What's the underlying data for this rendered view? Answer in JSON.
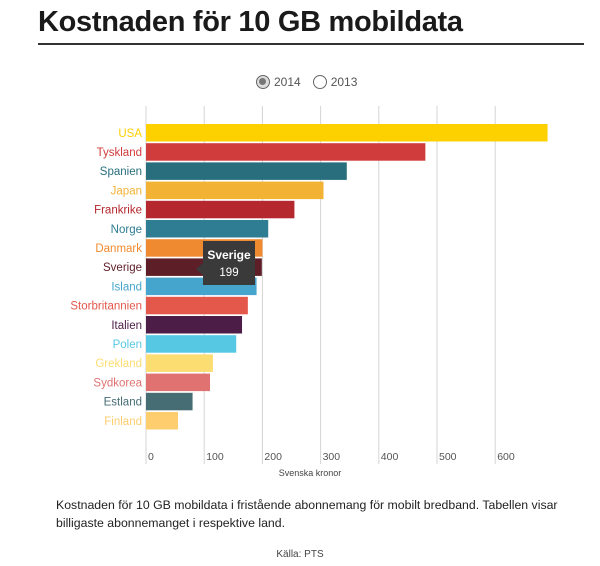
{
  "header": {
    "title": "Kostnaden för 10 GB mobildata"
  },
  "legend": {
    "options": [
      "2014",
      "2013"
    ],
    "selected": "2014"
  },
  "tooltip": {
    "label": "Sverige",
    "value": "199"
  },
  "caption": "Kostnaden för 10 GB mobildata i fristående abonnemang för mobilt bredband. Tabellen visar billigaste abonnemanget i respektive land.",
  "source": "Källa: PTS",
  "chart_data": {
    "type": "bar",
    "orientation": "horizontal",
    "title": "Kostnaden för 10 GB mobildata",
    "xlabel": "Svenska kronor",
    "ylabel": "",
    "xlim": [
      0,
      700
    ],
    "xticks": [
      0,
      100,
      200,
      300,
      400,
      500,
      600
    ],
    "grid": true,
    "series": [
      {
        "name": "2014",
        "values": [
          690,
          480,
          345,
          305,
          255,
          210,
          200,
          199,
          190,
          175,
          165,
          155,
          115,
          110,
          80,
          55
        ]
      }
    ],
    "categories": [
      "USA",
      "Tyskland",
      "Spanien",
      "Japan",
      "Frankrike",
      "Norge",
      "Danmark",
      "Sverige",
      "Island",
      "Storbritannien",
      "Italien",
      "Polen",
      "Grekland",
      "Sydkorea",
      "Estland",
      "Finland"
    ],
    "colors": [
      "#FDD000",
      "#D03B3B",
      "#286E7D",
      "#F2B335",
      "#B5282E",
      "#2F7D93",
      "#F08A30",
      "#5E1E27",
      "#45A5CC",
      "#E4574B",
      "#4C1E47",
      "#56C8E4",
      "#FCDD72",
      "#E07272",
      "#466C74",
      "#FDCD6E"
    ]
  }
}
